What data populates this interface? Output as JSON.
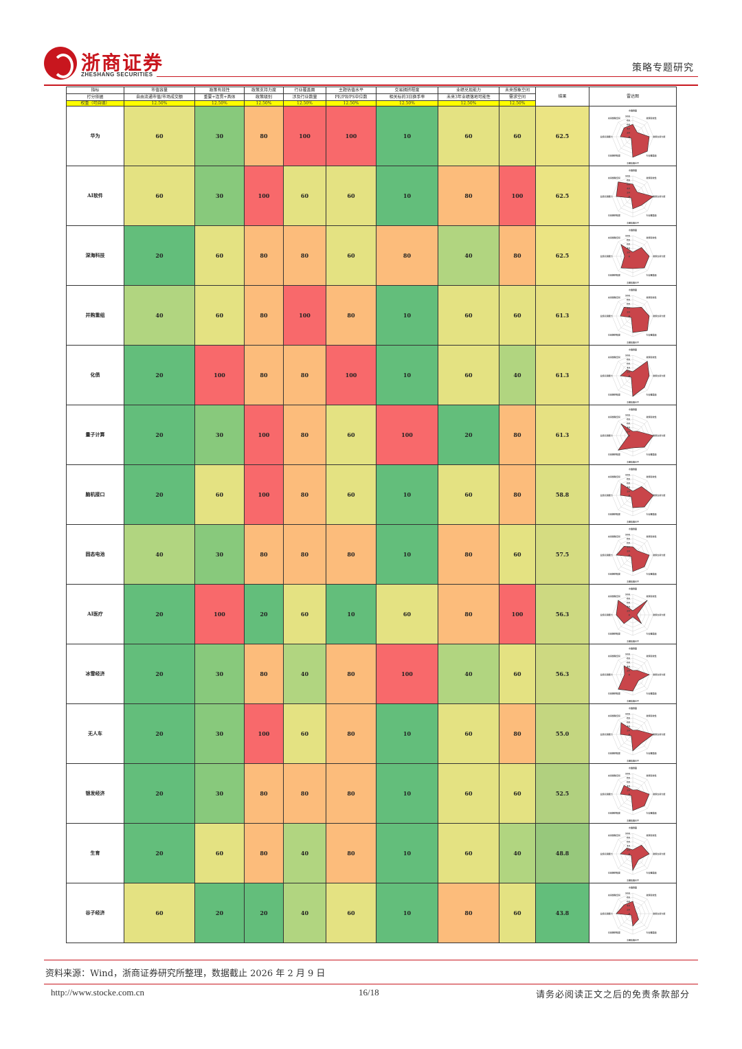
{
  "header": {
    "company_cn": "浙商证券",
    "company_en": "ZHESHANG SECURITIES",
    "report_type": "策略专题研究"
  },
  "table": {
    "headers": {
      "row1": [
        "指标",
        "市值容量",
        "政策有效性",
        "政策支持力度",
        "行业覆盖面",
        "主题估值水平",
        "交易拥挤程度",
        "业绩兑现能力",
        "未来想象空间",
        "结果",
        "雷达图"
      ],
      "row2": [
        "打分依据",
        "自由流通市值/市场成交额",
        "重要+连贯+具体",
        "政策级别",
        "涉及行业数量",
        "PE/PB/PS中位数",
        "相关标的3日换手率",
        "未来3年业绩落地可能性",
        "需求空间"
      ],
      "weights_label": "权重（可自填）",
      "weights": [
        "12.50%",
        "12.50%",
        "12.50%",
        "12.50%",
        "12.50%",
        "12.50%",
        "12.50%",
        "12.50%"
      ]
    },
    "rows": [
      {
        "name": "华为",
        "scores": [
          "60",
          "30",
          "80",
          "100",
          "100",
          "10",
          "60",
          "60"
        ],
        "result": "62.5"
      },
      {
        "name": "AI软件",
        "scores": [
          "60",
          "30",
          "100",
          "60",
          "60",
          "10",
          "80",
          "100"
        ],
        "result": "62.5"
      },
      {
        "name": "深海科技",
        "scores": [
          "20",
          "60",
          "80",
          "80",
          "60",
          "80",
          "40",
          "80"
        ],
        "result": "62.5"
      },
      {
        "name": "并购重组",
        "scores": [
          "40",
          "60",
          "80",
          "100",
          "80",
          "10",
          "60",
          "60"
        ],
        "result": "61.3"
      },
      {
        "name": "化债",
        "scores": [
          "20",
          "100",
          "80",
          "80",
          "100",
          "10",
          "60",
          "40"
        ],
        "result": "61.3"
      },
      {
        "name": "量子计算",
        "scores": [
          "20",
          "30",
          "100",
          "80",
          "60",
          "100",
          "20",
          "80"
        ],
        "result": "61.3"
      },
      {
        "name": "脑机接口",
        "scores": [
          "20",
          "60",
          "100",
          "80",
          "60",
          "10",
          "60",
          "80"
        ],
        "result": "58.8"
      },
      {
        "name": "固态电池",
        "scores": [
          "40",
          "30",
          "80",
          "80",
          "80",
          "10",
          "80",
          "60"
        ],
        "result": "57.5"
      },
      {
        "name": "AI医疗",
        "scores": [
          "20",
          "100",
          "20",
          "60",
          "10",
          "60",
          "80",
          "100"
        ],
        "result": "56.3"
      },
      {
        "name": "冰雪经济",
        "scores": [
          "20",
          "30",
          "80",
          "40",
          "80",
          "100",
          "40",
          "60"
        ],
        "result": "56.3"
      },
      {
        "name": "无人车",
        "scores": [
          "20",
          "30",
          "100",
          "60",
          "80",
          "10",
          "60",
          "80"
        ],
        "result": "55.0"
      },
      {
        "name": "银发经济",
        "scores": [
          "20",
          "30",
          "80",
          "80",
          "80",
          "10",
          "60",
          "60"
        ],
        "result": "52.5"
      },
      {
        "name": "生育",
        "scores": [
          "20",
          "60",
          "80",
          "40",
          "80",
          "10",
          "60",
          "40"
        ],
        "result": "48.8"
      },
      {
        "name": "谷子经济",
        "scores": [
          "60",
          "20",
          "20",
          "40",
          "60",
          "10",
          "80",
          "60"
        ],
        "result": "43.8"
      }
    ],
    "radar_axis_labels": [
      "市值容量",
      "政策有效性",
      "政策支持力度",
      "行业覆盖面",
      "主题估值水平",
      "交易拥挤程度",
      "业绩兑现能力",
      "未来想象空间"
    ],
    "radar_ticks": [
      "100",
      "80",
      "60",
      "40",
      "20",
      "0"
    ],
    "score_colors": {
      "10": "#63be7b",
      "20": "#63be7b",
      "30": "#88c97c",
      "40": "#b1d580",
      "60": "#e4e282",
      "80": "#fcbc7b",
      "100": "#f8696b"
    },
    "result_colors": {
      "62.5": "#ebe483",
      "61.3": "#e6e182",
      "58.8": "#dcdf82",
      "57.5": "#d5dc81",
      "56.3": "#cdd981",
      "55.0": "#c4d680",
      "52.5": "#b1d07f",
      "48.8": "#97c87c",
      "43.8": "#63be7b"
    },
    "radar_fill": "#c9454a"
  },
  "footer": {
    "source": "资料来源：Wind，浙商证券研究所整理，数据截止 2026 年 2 月 9 日",
    "url": "http://www.stocke.com.cn",
    "page": "16/18",
    "disclaimer": "请务必阅读正文之后的免责条款部分"
  }
}
